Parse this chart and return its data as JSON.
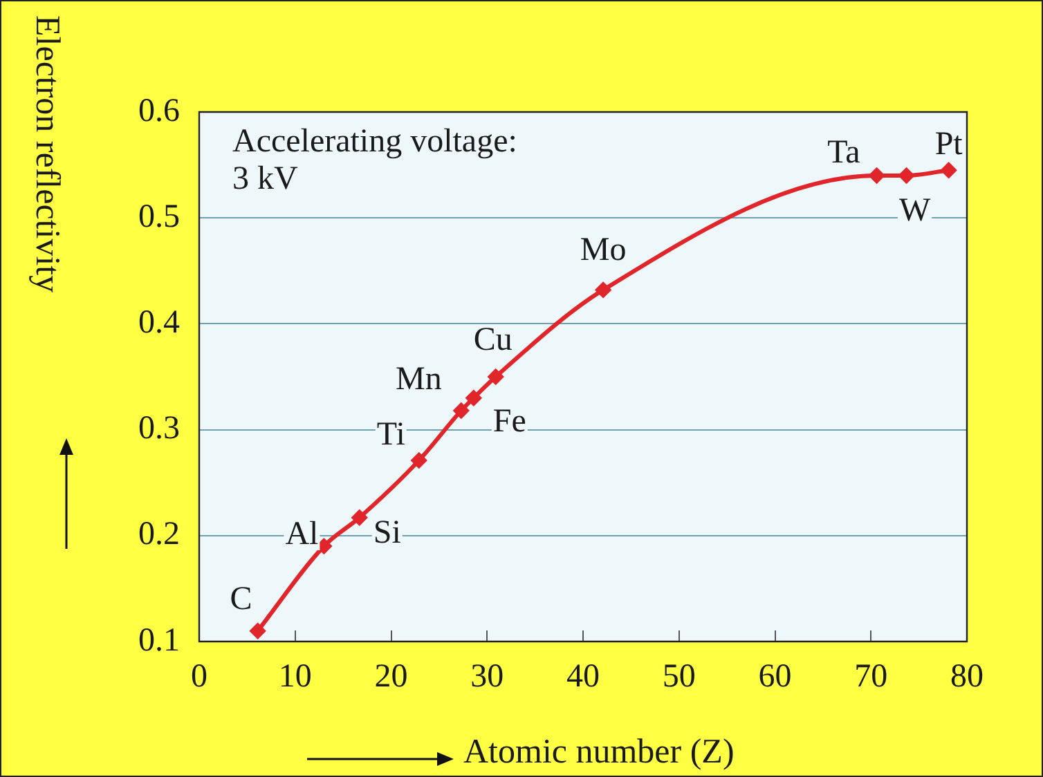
{
  "chart_data": {
    "type": "line",
    "xlabel": "Atomic number (Z)",
    "ylabel": "Electron reflectivity",
    "x": [
      6.1,
      13,
      16.7,
      22.9,
      27.3,
      28.6,
      30.9,
      42.1,
      70.6,
      73.7,
      78.1
    ],
    "series": [
      {
        "color": "#e0262b",
        "values": [
          0.11,
          0.19,
          0.217,
          0.271,
          0.318,
          0.33,
          0.35,
          0.432,
          0.54,
          0.54,
          0.545
        ]
      }
    ],
    "xlim": [
      0,
      80
    ],
    "xticks": [
      0,
      10,
      20,
      30,
      40,
      50,
      60,
      70,
      80
    ],
    "ylim": [
      0.1,
      0.6
    ],
    "yticks": [
      0.1,
      0.2,
      0.3,
      0.4,
      0.5,
      0.6
    ],
    "grid": "y",
    "marker": "diamond",
    "line_style": "solid",
    "annotations": [
      "Accelerating voltage:\n3 kV",
      {
        "text": "C",
        "x": 6.1,
        "y": 0.11
      },
      {
        "text": "Al",
        "x": 13,
        "y": 0.19
      },
      {
        "text": "Si",
        "x": 16.7,
        "y": 0.217
      },
      {
        "text": "Ti",
        "x": 22.9,
        "y": 0.271
      },
      {
        "text": "Mn",
        "x": 27.3,
        "y": 0.318
      },
      {
        "text": "Fe",
        "x": 28.6,
        "y": 0.33
      },
      {
        "text": "Cu",
        "x": 30.9,
        "y": 0.35
      },
      {
        "text": "Mo",
        "x": 42.1,
        "y": 0.432
      },
      {
        "text": "Ta",
        "x": 70.6,
        "y": 0.54
      },
      {
        "text": "W",
        "x": 73.7,
        "y": 0.54
      },
      {
        "text": "Pt",
        "x": 78.1,
        "y": 0.545
      }
    ]
  }
}
